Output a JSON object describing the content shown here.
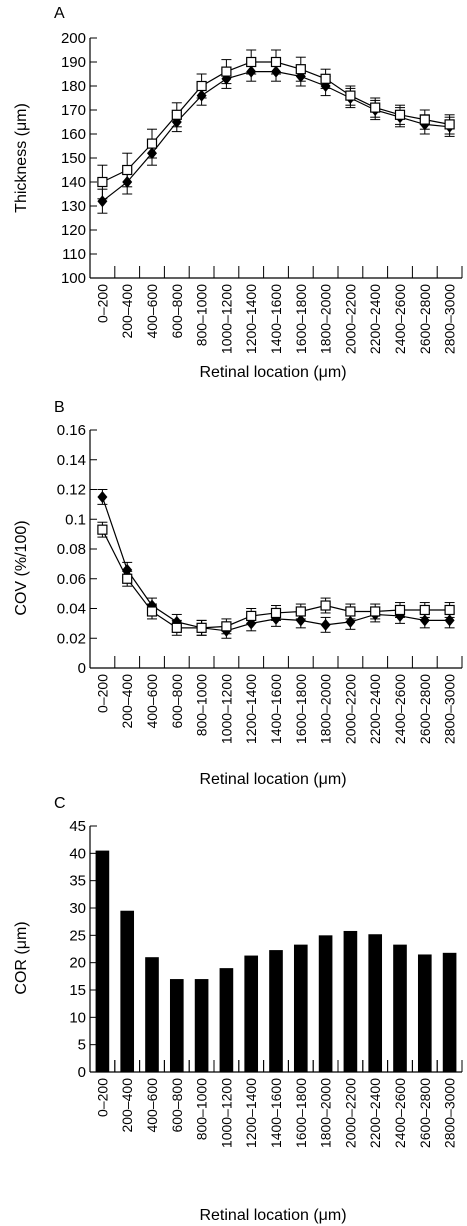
{
  "categories": [
    "0–200",
    "200–400",
    "400–600",
    "600–800",
    "800–1000",
    "1000–1200",
    "1200–1400",
    "1400–1600",
    "1600–1800",
    "1800–2000",
    "2000–2200",
    "2200–2400",
    "2400–2600",
    "2600–2800",
    "2800–3000"
  ],
  "chart_data": [
    {
      "panel": "A",
      "type": "line",
      "ylabel": "Thickness (μm)",
      "xlabel": "Retinal location (μm)",
      "ylim": [
        100,
        200
      ],
      "yticks": [
        100,
        110,
        120,
        130,
        140,
        150,
        160,
        170,
        180,
        190,
        200
      ],
      "series": [
        {
          "marker": "filled-diamond",
          "values": [
            132,
            140,
            152,
            165,
            176,
            183,
            186,
            186,
            184,
            180,
            175,
            170,
            167,
            164,
            163
          ],
          "errors": [
            5,
            5,
            5,
            4,
            4,
            4,
            4,
            4,
            4,
            4,
            4,
            4,
            4,
            4,
            4
          ]
        },
        {
          "marker": "open-square",
          "values": [
            140,
            145,
            156,
            168,
            180,
            186,
            190,
            190,
            187,
            183,
            176,
            171,
            168,
            166,
            164
          ],
          "errors": [
            7,
            7,
            6,
            5,
            5,
            5,
            5,
            5,
            5,
            4,
            4,
            4,
            4,
            4,
            4
          ]
        }
      ]
    },
    {
      "panel": "B",
      "type": "line",
      "ylabel": "COV (%/100)",
      "xlabel": "Retinal location (μm)",
      "ylim": [
        0,
        0.16
      ],
      "yticks": [
        "0",
        "0.02",
        "0.04",
        "0.06",
        "0.08",
        "0.1",
        "0.12",
        "0.14",
        "0.16"
      ],
      "series": [
        {
          "marker": "filled-diamond",
          "values": [
            0.115,
            0.066,
            0.042,
            0.031,
            0.027,
            0.025,
            0.03,
            0.033,
            0.032,
            0.029,
            0.031,
            0.036,
            0.035,
            0.032,
            0.032
          ],
          "errors": [
            0.005,
            0.005,
            0.005,
            0.005,
            0.005,
            0.005,
            0.005,
            0.005,
            0.005,
            0.005,
            0.005,
            0.005,
            0.005,
            0.005,
            0.005
          ]
        },
        {
          "marker": "open-square",
          "values": [
            0.093,
            0.06,
            0.038,
            0.027,
            0.027,
            0.028,
            0.035,
            0.037,
            0.038,
            0.042,
            0.038,
            0.038,
            0.039,
            0.039,
            0.039
          ],
          "errors": [
            0.005,
            0.005,
            0.005,
            0.005,
            0.005,
            0.005,
            0.005,
            0.005,
            0.005,
            0.005,
            0.005,
            0.005,
            0.005,
            0.005,
            0.005
          ]
        }
      ]
    },
    {
      "panel": "C",
      "type": "bar",
      "ylabel": "COR (μm)",
      "xlabel": "Retinal location (μm)",
      "ylim": [
        0,
        45
      ],
      "yticks": [
        0,
        5,
        10,
        15,
        20,
        25,
        30,
        35,
        40,
        45
      ],
      "values": [
        40.5,
        29.5,
        21,
        17,
        17,
        19,
        21.3,
        22.3,
        23.3,
        25,
        25.8,
        25.2,
        23.3,
        21.5,
        21.8
      ]
    }
  ],
  "colors": {
    "ink": "#000000",
    "open_fill": "#ffffff",
    "bar": "#000000"
  }
}
